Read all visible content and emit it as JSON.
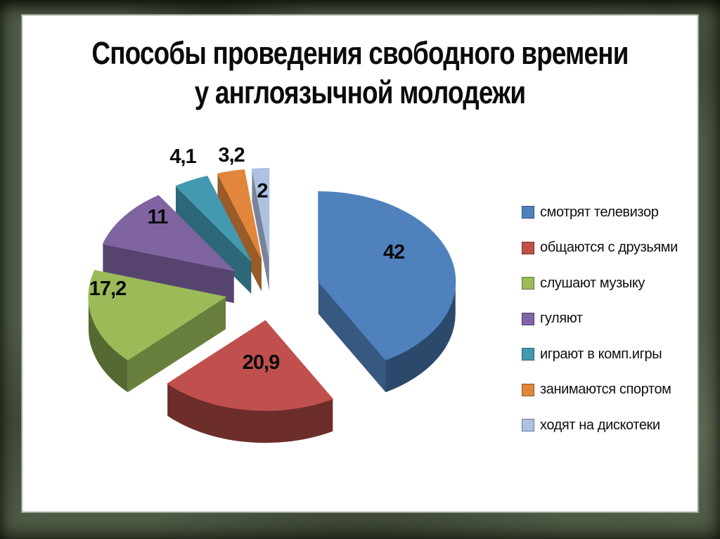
{
  "title": {
    "line1": "Способы проведения свободного времени",
    "line2": "у англоязычной молодежи"
  },
  "chart_data": {
    "type": "pie",
    "style": "3d-exploded",
    "title": "Способы проведения свободного времени у англоязычной молодежи",
    "legend_position": "right",
    "labels_shown": true,
    "series": [
      {
        "label": "смотрят телевизор",
        "value": 42,
        "color": "#4F81BD"
      },
      {
        "label": "общаются с друзьями",
        "value": 20.9,
        "color": "#C0504D"
      },
      {
        "label": "слушают музыку",
        "value": 17.2,
        "color": "#9BBB59"
      },
      {
        "label": "гуляют",
        "value": 11,
        "color": "#8064A2"
      },
      {
        "label": "играют в комп.игры",
        "value": 4.1,
        "color": "#4299B0"
      },
      {
        "label": "занимаются спортом",
        "value": 3.2,
        "color": "#E1863A"
      },
      {
        "label": "ходят на дискотеки",
        "value": 2,
        "color": "#AEC1E1"
      }
    ]
  },
  "colors": {
    "frame_background": "#4E5A44",
    "card_background": "#FFFFFF"
  }
}
